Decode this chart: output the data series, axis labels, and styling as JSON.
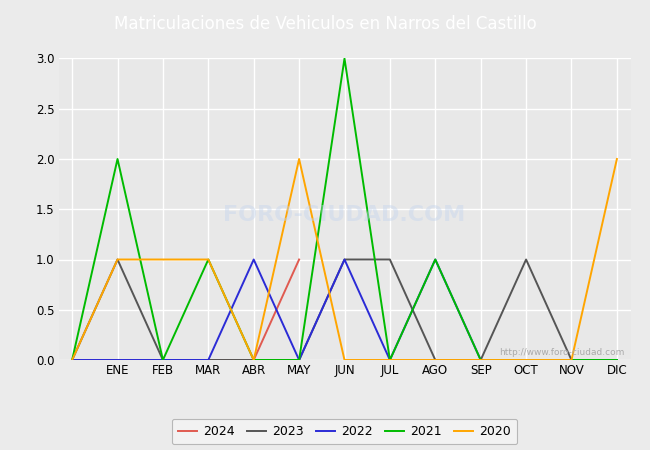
{
  "title": "Matriculaciones de Vehiculos en Narros del Castillo",
  "months": [
    "",
    "ENE",
    "FEB",
    "MAR",
    "ABR",
    "MAY",
    "JUN",
    "JUL",
    "AGO",
    "SEP",
    "OCT",
    "NOV",
    "DIC"
  ],
  "month_indices": [
    0,
    1,
    2,
    3,
    4,
    5,
    6,
    7,
    8,
    9,
    10,
    11,
    12
  ],
  "series": [
    {
      "label": "2024",
      "color": "#e05a50",
      "data_x": [
        0,
        1,
        2,
        3,
        4,
        5
      ],
      "data_y": [
        0,
        0,
        0,
        0,
        0,
        1
      ]
    },
    {
      "label": "2023",
      "color": "#555555",
      "data_x": [
        0,
        1,
        2,
        3,
        4,
        5,
        6,
        7,
        8,
        9,
        10,
        11,
        12
      ],
      "data_y": [
        0,
        1,
        0,
        0,
        0,
        0,
        1,
        1,
        0,
        0,
        1,
        0,
        0
      ]
    },
    {
      "label": "2022",
      "color": "#2b2bd6",
      "data_x": [
        0,
        1,
        2,
        3,
        4,
        5,
        6,
        7,
        8,
        9,
        10,
        11,
        12
      ],
      "data_y": [
        0,
        0,
        0,
        0,
        1,
        0,
        1,
        0,
        1,
        0,
        0,
        0,
        0
      ]
    },
    {
      "label": "2021",
      "color": "#00bb00",
      "data_x": [
        0,
        1,
        2,
        3,
        4,
        5,
        6,
        7,
        8,
        9,
        10,
        11,
        12
      ],
      "data_y": [
        0,
        2,
        0,
        1,
        0,
        0,
        3,
        0,
        1,
        0,
        0,
        0,
        0
      ]
    },
    {
      "label": "2020",
      "color": "#ffa500",
      "data_x": [
        0,
        1,
        2,
        3,
        4,
        5,
        6,
        7,
        8,
        9,
        10,
        11,
        12
      ],
      "data_y": [
        0,
        1,
        1,
        1,
        0,
        2,
        0,
        0,
        0,
        0,
        0,
        0,
        2
      ]
    }
  ],
  "ylim": [
    0.0,
    3.0
  ],
  "yticks": [
    0.0,
    0.5,
    1.0,
    1.5,
    2.0,
    2.5,
    3.0
  ],
  "watermark": "http://www.foro-ciudad.com",
  "plot_bg_color": "#e8e8e8",
  "fig_bg_color": "#ebebeb",
  "grid_color": "#ffffff",
  "title_color": "#333333",
  "title_bg_color": "#5b8dd9",
  "legend_bg": "#f5f5f5",
  "legend_edge": "#aaaaaa"
}
